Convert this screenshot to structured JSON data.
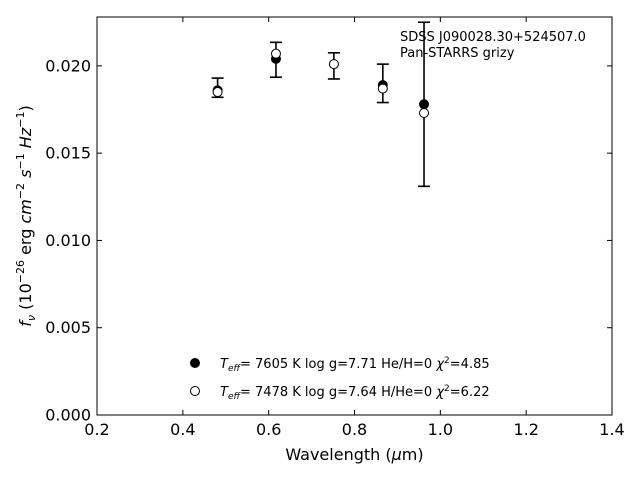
{
  "chart_data": {
    "type": "scatter",
    "xlabel_main": "Wavelength (",
    "xlabel_mu": "μ",
    "xlabel_unit": "m)",
    "ylabel": "f_ν (10^-26 erg cm^-2 s^-1 Hz^-1)",
    "xlim": [
      0.2,
      1.4
    ],
    "ylim": [
      0.0,
      0.0228
    ],
    "x_ticks": [
      0.2,
      0.4,
      0.6,
      0.8,
      1.0,
      1.2,
      1.4
    ],
    "x_tick_labels": [
      "0.2",
      "0.4",
      "0.6",
      "0.8",
      "1.0",
      "1.2",
      "1.4"
    ],
    "y_ticks": [
      0.0,
      0.005,
      0.01,
      0.015,
      0.02
    ],
    "y_tick_labels": [
      "0.000",
      "0.005",
      "0.010",
      "0.015",
      "0.020"
    ],
    "grid": false,
    "annotation": {
      "line1": "SDSS J090028.30+524507.0",
      "line2": "Pan-STARRS grizy"
    },
    "observed": {
      "x": [
        0.481,
        0.617,
        0.752,
        0.866,
        0.962
      ],
      "y": [
        0.01875,
        0.02035,
        0.02,
        0.019,
        0.0178
      ],
      "yerr": [
        0.00055,
        0.001,
        0.00075,
        0.0011,
        0.0047
      ]
    },
    "series": [
      {
        "marker": "filled-circle",
        "x": [
          0.481,
          0.617,
          0.752,
          0.866,
          0.962
        ],
        "y": [
          0.0186,
          0.0204,
          0.0201,
          0.0189,
          0.0178
        ],
        "legend": {
          "teff": "7605 K",
          "logg": "log g=7.71",
          "comp": "He/H=0",
          "chi2": "=4.85"
        }
      },
      {
        "marker": "open-circle",
        "x": [
          0.481,
          0.617,
          0.752,
          0.866,
          0.962
        ],
        "y": [
          0.0185,
          0.0207,
          0.0201,
          0.0187,
          0.0173
        ],
        "legend": {
          "teff": "7478 K",
          "logg": "log g=7.64",
          "comp": "H/He=0",
          "chi2": "=6.22"
        }
      }
    ],
    "legend_position": "lower-center"
  }
}
